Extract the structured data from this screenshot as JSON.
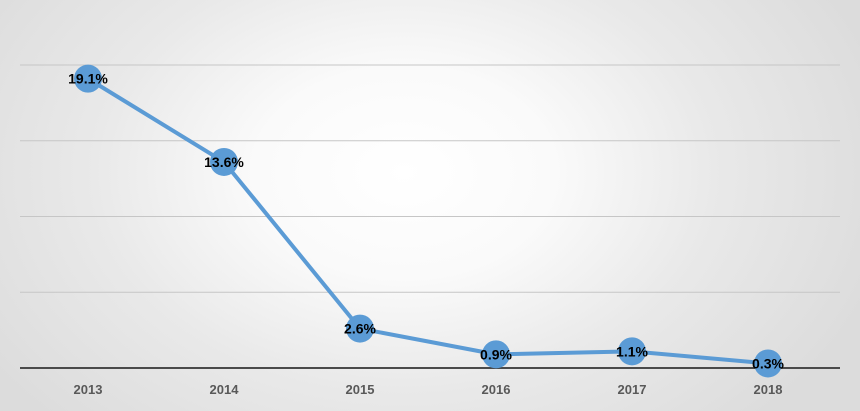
{
  "chart_data": {
    "type": "line",
    "title": "",
    "xlabel": "",
    "ylabel": "",
    "categories": [
      "2013",
      "2014",
      "2015",
      "2016",
      "2017",
      "2018"
    ],
    "series": [
      {
        "values": [
          19.1,
          13.6,
          2.6,
          0.9,
          1.1,
          0.3
        ],
        "labels": [
          "19.1%",
          "13.6%",
          "2.6%",
          "0.9%",
          "1.1%",
          "0.3%"
        ]
      }
    ],
    "ylim": [
      0,
      20
    ],
    "y_gridlines": [
      0,
      5,
      10,
      15,
      20
    ],
    "grid": true,
    "legend": "none",
    "colors": {
      "series": "#5b9bd5",
      "marker": "#5b9bd5"
    }
  }
}
